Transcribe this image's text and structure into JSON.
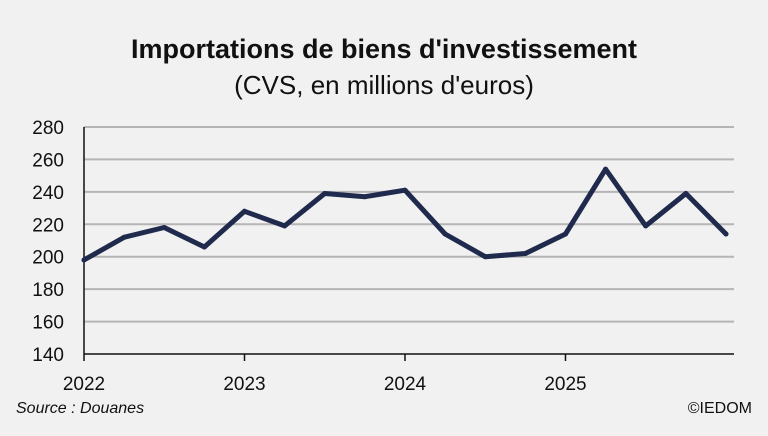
{
  "chart_data": {
    "type": "line",
    "title": "Importations de biens d'investissement",
    "subtitle": "(CVS, en millions d'euros)",
    "xlabel": "",
    "ylabel": "",
    "ylim": [
      140,
      280
    ],
    "yticks": [
      "140",
      "160",
      "180",
      "200",
      "220",
      "240",
      "260",
      "280"
    ],
    "xticks": [
      "2022",
      "2023",
      "2024",
      "2025"
    ],
    "grid": true,
    "series": [
      {
        "color": "#1f2a4d",
        "x": [
          "2022-01",
          "2022-04",
          "2022-07",
          "2022-10",
          "2023-01",
          "2023-04",
          "2023-07",
          "2023-10",
          "2024-01",
          "2024-04",
          "2024-07",
          "2024-10",
          "2025-01",
          "2025-04",
          "2025-07",
          "2025-10",
          "2026-01"
        ],
        "values": [
          198,
          212,
          218,
          206,
          228,
          219,
          239,
          237,
          241,
          214,
          200,
          202,
          214,
          254,
          219,
          239,
          214
        ]
      }
    ]
  },
  "footer": {
    "source": "Source : Douanes",
    "credit": "©IEDOM"
  }
}
